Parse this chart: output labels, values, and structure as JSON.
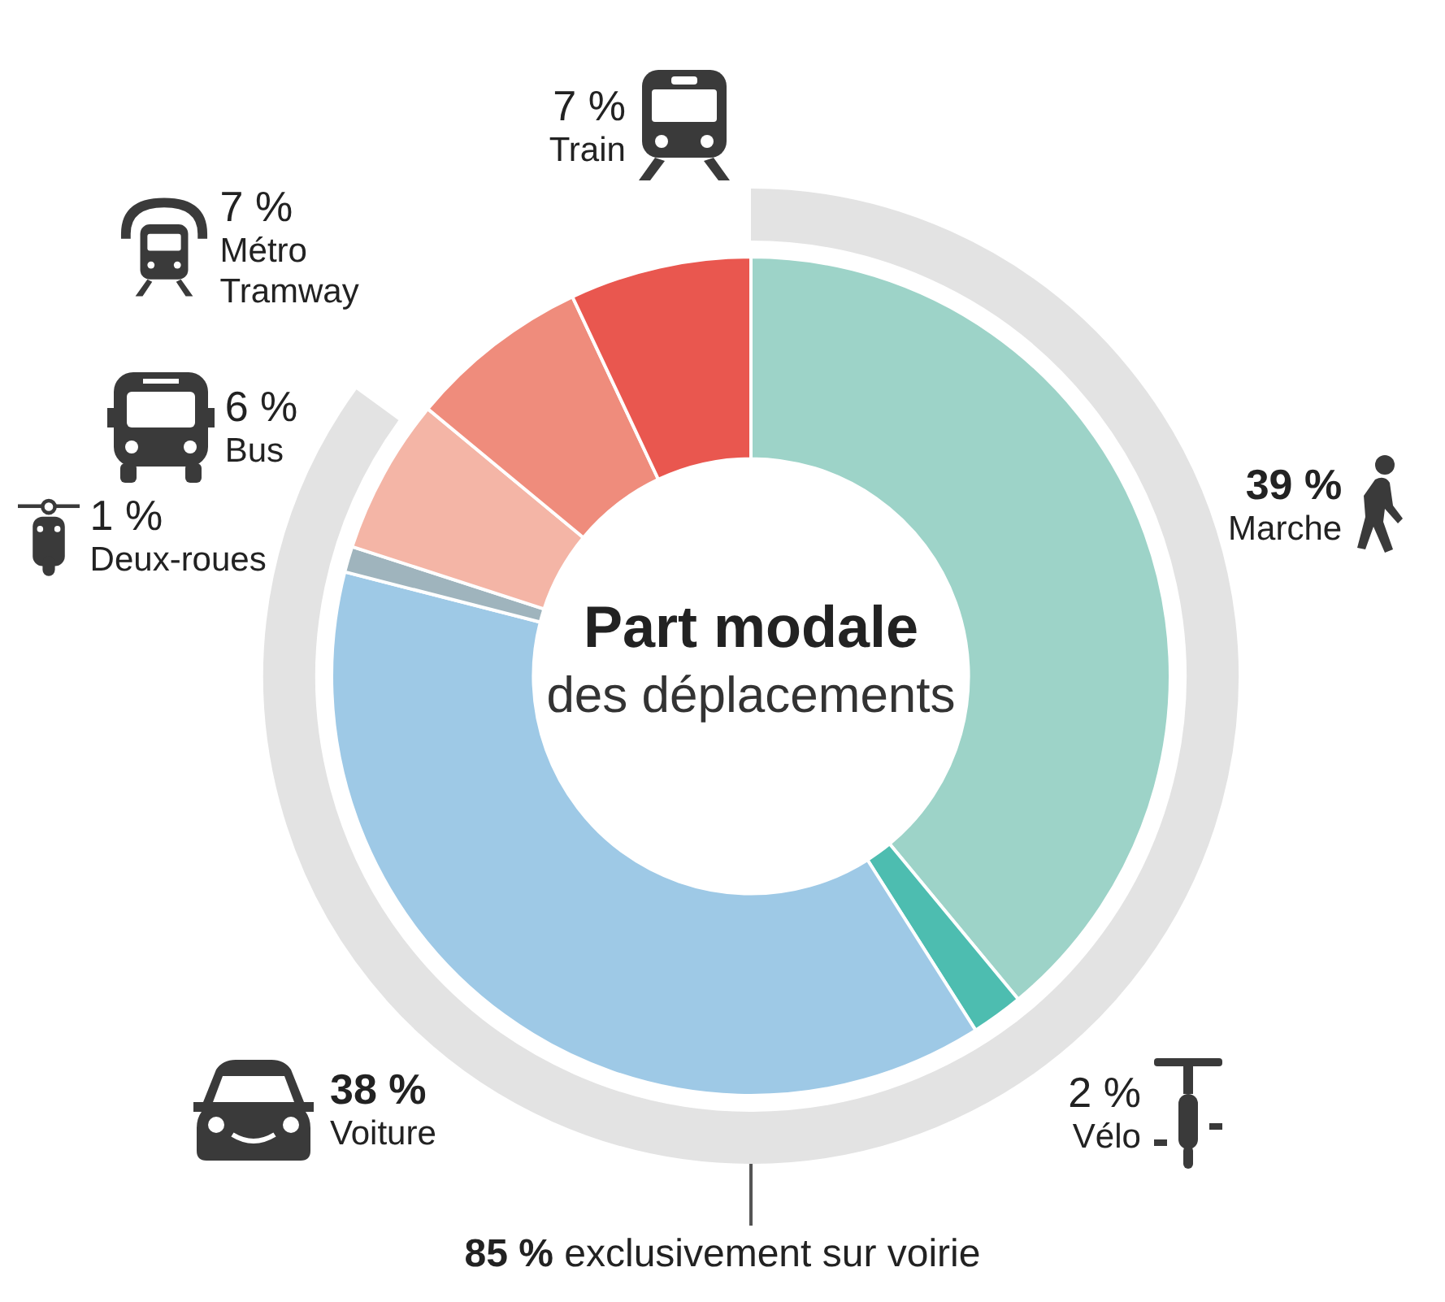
{
  "chart_data": {
    "type": "donut",
    "title": "Part modale",
    "subtitle": "des déplacements",
    "categories": [
      "Marche",
      "Vélo",
      "Voiture",
      "Deux-roues",
      "Bus",
      "Métro Tramway",
      "Train"
    ],
    "values": [
      39,
      2,
      38,
      1,
      6,
      7,
      7
    ],
    "value_labels": [
      "39 %",
      "2 %",
      "38 %",
      "1 %",
      "6 %",
      "7 %",
      "7 %"
    ],
    "colors": [
      "#9dd3c8",
      "#4dbdb0",
      "#9ec9e6",
      "#9fb4bd",
      "#f4b5a6",
      "#ef8c7c",
      "#e9574f"
    ],
    "annotations": [
      "85 % exclusivement sur voirie"
    ]
  }
}
